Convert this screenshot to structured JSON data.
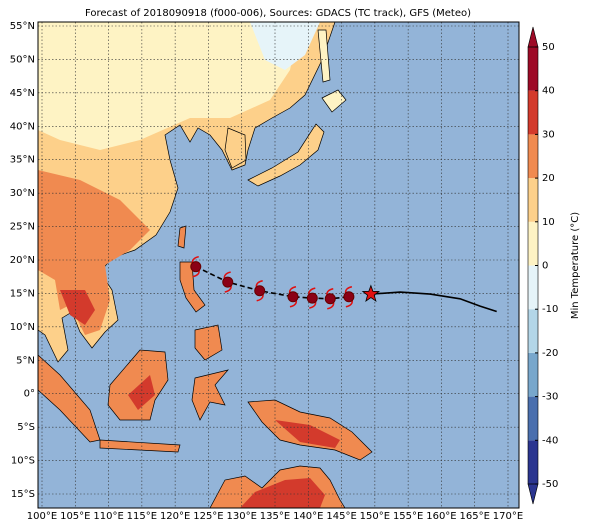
{
  "title": "Forecast of 2018090918 (f000-006), Sources: GDACS (TC track), GFS (Meteo)",
  "lon_ticks": [
    {
      "value": 100,
      "label": "100°E"
    },
    {
      "value": 105,
      "label": "105°E"
    },
    {
      "value": 110,
      "label": "110°E"
    },
    {
      "value": 115,
      "label": "115°E"
    },
    {
      "value": 120,
      "label": "120°E"
    },
    {
      "value": 125,
      "label": "125°E"
    },
    {
      "value": 130,
      "label": "130°E"
    },
    {
      "value": 135,
      "label": "135°E"
    },
    {
      "value": 140,
      "label": "140°E"
    },
    {
      "value": 145,
      "label": "145°E"
    },
    {
      "value": 150,
      "label": "150°E"
    },
    {
      "value": 155,
      "label": "155°E"
    },
    {
      "value": 160,
      "label": "160°E"
    },
    {
      "value": 165,
      "label": "165°E"
    },
    {
      "value": 170,
      "label": "170°E"
    }
  ],
  "lat_ticks": [
    {
      "value": 55,
      "label": "55°N"
    },
    {
      "value": 50,
      "label": "50°N"
    },
    {
      "value": 45,
      "label": "45°N"
    },
    {
      "value": 40,
      "label": "40°N"
    },
    {
      "value": 35,
      "label": "35°N"
    },
    {
      "value": 30,
      "label": "30°N"
    },
    {
      "value": 25,
      "label": "25°N"
    },
    {
      "value": 20,
      "label": "20°N"
    },
    {
      "value": 15,
      "label": "15°N"
    },
    {
      "value": 10,
      "label": "10°N"
    },
    {
      "value": 5,
      "label": "5°N"
    },
    {
      "value": 0,
      "label": "0°"
    },
    {
      "value": -5,
      "label": "5°S"
    },
    {
      "value": -10,
      "label": "10°S"
    },
    {
      "value": -15,
      "label": "15°S"
    }
  ],
  "colorbar": {
    "label": "Min Temperature (°C)",
    "ticks": [
      -50,
      -40,
      -30,
      -20,
      -10,
      0,
      10,
      20,
      30,
      40,
      50
    ],
    "colors": [
      "#2b3590",
      "#4a6fae",
      "#78a7cc",
      "#b3d6e8",
      "#e6f4f9",
      "#fef3c4",
      "#fdd08a",
      "#f08a50",
      "#d33a2c",
      "#9d0a26"
    ]
  },
  "track": {
    "past": {
      "lon": [
        149.4,
        153.8,
        158.3,
        162.8,
        165.8,
        168.3
      ],
      "lat": [
        14.9,
        15.2,
        14.9,
        14.2,
        13.1,
        12.3
      ]
    },
    "forecast": {
      "lon": [
        123.1,
        127.9,
        132.7,
        137.7,
        140.6,
        143.3,
        146.1
      ],
      "lat": [
        19.0,
        16.7,
        15.4,
        14.5,
        14.3,
        14.2,
        14.5
      ]
    },
    "current": {
      "lon": 149.4,
      "lat": 14.9
    }
  }
}
